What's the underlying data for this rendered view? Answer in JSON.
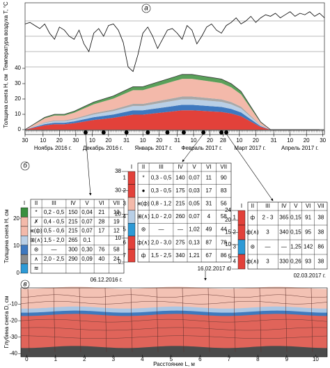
{
  "panel_a": {
    "label": "а",
    "temperature": {
      "axis_label": "Температура воздуха Т, °С",
      "ylim": [
        -40,
        10
      ],
      "gridlines": [
        0,
        -10,
        -20,
        -30
      ],
      "values": [
        -2,
        -1,
        -3,
        -5,
        -2,
        -8,
        -12,
        -4,
        -6,
        -10,
        -12,
        -6,
        -15,
        -20,
        -8,
        -5,
        -10,
        -3,
        -2,
        -6,
        -14,
        -30,
        -33,
        -22,
        -8,
        -4,
        -10,
        -18,
        -12,
        -6,
        -5,
        -8,
        -12,
        -3,
        -6,
        -15,
        -10,
        -4,
        -2,
        -6,
        -8,
        -3,
        -1,
        2,
        -2,
        0,
        3,
        -1,
        2,
        4,
        3,
        5,
        2,
        4,
        6,
        3,
        5,
        4,
        6,
        3,
        5,
        2
      ]
    },
    "snow": {
      "axis_label": "Толщина снега Н, см",
      "ylim": [
        0,
        40
      ],
      "yticks": [
        0,
        10,
        20,
        30,
        40
      ],
      "values": [
        0,
        4,
        8,
        10,
        10,
        12,
        15,
        18,
        20,
        22,
        25,
        28,
        28,
        30,
        32,
        34,
        36,
        36,
        35,
        34,
        33,
        30,
        25,
        15,
        5,
        0,
        0,
        0,
        0,
        0,
        0
      ]
    },
    "time_axis": {
      "start_tick": 30,
      "months": [
        {
          "name": "Ноябрь 2016 г.",
          "ticks": [
            10,
            20,
            30
          ]
        },
        {
          "name": "Декабрь 2016 г.",
          "ticks": [
            10,
            20,
            31
          ]
        },
        {
          "name": "Январь 2017 г.",
          "ticks": [
            10,
            20,
            31
          ]
        },
        {
          "name": "Февраль 2017 г.",
          "ticks": [
            10,
            20,
            28
          ]
        },
        {
          "name": "Март 2017 г.",
          "ticks": [
            10,
            20,
            31
          ]
        },
        {
          "name": "Апрель 2017 г.",
          "ticks": [
            10,
            20,
            30
          ]
        }
      ]
    }
  },
  "panel_b": {
    "label": "б",
    "tables": [
      {
        "date": "06.12.2016 г.",
        "y_label": "Толщина снега Н, см",
        "ylim": [
          0,
          24
        ],
        "yticks": [
          0,
          10,
          20
        ],
        "header": [
          "I",
          "II",
          "III",
          "IV",
          "V",
          "VI",
          "VII"
        ],
        "colors": [
          "#3a8f3f",
          "#f3b9aa",
          "#f3b9aa",
          "#b9cfe6",
          "#3e78bf",
          "#8c8c8c",
          "#2d9ad6"
        ],
        "rows": [
          [
            "*",
            "0,2 - 0,5",
            "150",
            "0,04",
            "21",
            "13"
          ],
          [
            "✗",
            "0,4 - 0,5",
            "215",
            "0,07",
            "28",
            "19"
          ],
          [
            "ж(ф)",
            "0,5 - 0,6",
            "215",
            "0,07",
            "17",
            "12"
          ],
          [
            "⊞(∧)",
            "1,5 - 2,0",
            "265",
            "0,1",
            null,
            null
          ],
          [
            "⊚",
            "—",
            "300",
            "0,30",
            "76",
            "58"
          ],
          [
            "∧",
            "2,0 - 2,5",
            "290",
            "0,09",
            "40",
            "24"
          ],
          [
            "≋",
            null,
            null,
            null,
            null,
            null
          ]
        ]
      },
      {
        "date": "16.02.2017 г.",
        "ylim": [
          0,
          38
        ],
        "yticks": [
          0,
          10,
          20,
          30,
          38
        ],
        "header": [
          "I",
          "II",
          "III",
          "IV",
          "V",
          "VI",
          "VII"
        ],
        "row_numbers": [
          "1",
          "2",
          "3",
          "4",
          "5",
          "6",
          "7"
        ],
        "colors": [
          "#e2413a",
          "#e2413a",
          "#f3b9aa",
          "#b9cfe6",
          "#2d9ad6",
          "#e2413a",
          "#e2413a"
        ],
        "rows": [
          [
            "*",
            "0,3 - 0,5",
            "140",
            "0,07",
            "11",
            "90"
          ],
          [
            "●",
            "0,3 - 0,5",
            "175",
            "0,03",
            "17",
            "83"
          ],
          [
            "ж(ф)",
            "0,8 - 1,2",
            "215",
            "0,05",
            "31",
            "56"
          ],
          [
            "⊞(∧)",
            "1,0 - 2,0",
            "260",
            "0,07",
            "4",
            "58"
          ],
          [
            "⊚",
            "—",
            "—",
            "1,02",
            "49",
            "44"
          ],
          [
            "ф(∧)",
            "2,0 - 3,0",
            "275",
            "0,13",
            "87",
            "78"
          ],
          [
            "ф",
            "1,5 - 2,5",
            "340",
            "1,21",
            "67",
            "86"
          ]
        ]
      },
      {
        "date": "02.03.2017 г.",
        "ylim": [
          0,
          24
        ],
        "yticks": [
          0,
          5,
          10,
          15,
          20,
          24
        ],
        "header": [
          "I",
          "II",
          "III",
          "IV",
          "V",
          "VI",
          "VII"
        ],
        "row_numbers": [
          "1",
          "2",
          "3",
          "4"
        ],
        "colors": [
          "#e2413a",
          "#e2413a",
          "#2d9ad6",
          "#e2413a"
        ],
        "rows": [
          [
            "ф",
            "2 - 3",
            "365",
            "0,15",
            "91",
            "38"
          ],
          [
            "ф(∧)",
            "3",
            "340",
            "0,15",
            "95",
            "38"
          ],
          [
            "⊚",
            "—",
            "—",
            "1,25",
            "142",
            "86"
          ],
          [
            "ф(∧)",
            "3",
            "330",
            "0,26",
            "93",
            "38"
          ]
        ]
      }
    ]
  },
  "panel_c": {
    "label": "в",
    "y_label": "Глубина снега D, см",
    "x_label": "Расстояние L, м",
    "ylim": [
      -42,
      0
    ],
    "yticks": [
      -10,
      -20,
      -30,
      -40
    ],
    "xlim": [
      -0.2,
      10.4
    ],
    "xticks": [
      0,
      1,
      2,
      3,
      4,
      5,
      6,
      7,
      8,
      9,
      10
    ]
  }
}
